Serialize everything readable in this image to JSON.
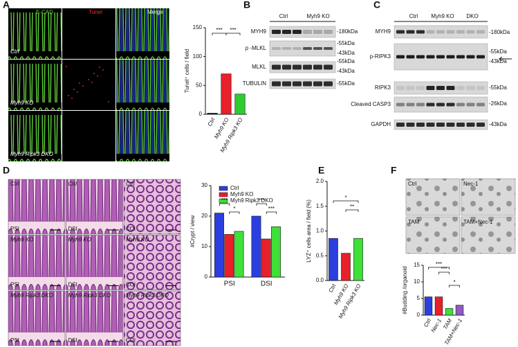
{
  "figure": {
    "panel_labels": [
      "A",
      "B",
      "C",
      "D",
      "E",
      "F"
    ],
    "a_micrographs": {
      "columns": [
        "E-CAD",
        "Tunel",
        "Merge"
      ],
      "rows": [
        "Ctrl",
        "Myh9 KO",
        "Myh9 Ripk3 DKO"
      ]
    },
    "b_blot": {
      "lanes": [
        "Ctrl",
        "Myh9 KO"
      ],
      "rows": [
        "MYH9",
        "p -MLKL",
        "MLKL",
        "TUBULIN"
      ],
      "markers": [
        "-180kDa",
        "-55kDa",
        "-43kDa",
        "-55kDa",
        "-43kDa",
        "-55kDa"
      ]
    },
    "c_blot": {
      "lanes": [
        "Ctrl",
        "Myh9 KO",
        "DKO"
      ],
      "rows": [
        "MYH9",
        "p-RIPK3",
        "RIPK3",
        "Cleaved CASP3",
        "GAPDH"
      ],
      "markers": [
        "-180kDa",
        "-55kDa",
        "-43kDa",
        "-55kDa",
        "-26kDa",
        "-43kDa"
      ]
    },
    "d_micrographs": {
      "columns": [
        "PSI",
        "DSI",
        "COl"
      ],
      "rows": [
        "Ctrl",
        "Myh9 KO",
        "Myh9 Ripk3 DKO"
      ]
    },
    "f_micrographs": [
      "Ctrl",
      "Nec-1",
      "TAM",
      "TAM+Nec-1"
    ]
  },
  "chart_data": [
    {
      "type": "bar",
      "y_label": "Tunel⁺ cells / field",
      "categories": [
        "Ctrl",
        "Myh9 KO",
        "Myh9 Ripk3 KO"
      ],
      "values": [
        2,
        70,
        35
      ],
      "colors": [
        "#333333",
        "#e8202a",
        "#2ecc2e"
      ],
      "ylim": [
        0,
        150
      ],
      "yticks": [
        0,
        50,
        100,
        150
      ],
      "annotations": [
        "***",
        "***"
      ]
    },
    {
      "type": "grouped-bar",
      "y_label": "#Crypt / view",
      "categories": [
        "PSI",
        "DSI"
      ],
      "series": [
        {
          "name": "Ctrl",
          "color": "#2b3fe0",
          "values": [
            21,
            20
          ]
        },
        {
          "name": "Myh9 KO",
          "color": "#e8202a",
          "values": [
            14,
            12.5
          ]
        },
        {
          "name": "Myh9 Ripk3 DKO",
          "color": "#3fe03a",
          "values": [
            15,
            16.5
          ]
        }
      ],
      "ylim": [
        0,
        30
      ],
      "yticks": [
        0,
        10,
        20,
        30
      ],
      "annotations": [
        "***",
        "*",
        "***",
        "***"
      ]
    },
    {
      "type": "bar",
      "y_label": "LYZ⁺ cells area / field (%)",
      "categories": [
        "Ctrl",
        "Myh9 KO",
        "Myh9 Ripk3 KO"
      ],
      "values": [
        0.85,
        0.55,
        0.85
      ],
      "colors": [
        "#2b3fe0",
        "#e8202a",
        "#3fe03a"
      ],
      "ylim": [
        0,
        2
      ],
      "yticks": [
        {
          "value": 0,
          "label": "0.0"
        },
        {
          "value": 0.5,
          "label": "0.5"
        },
        {
          "value": 1,
          "label": "1.0"
        },
        {
          "value": 1.5,
          "label": "1.5"
        },
        {
          "value": 2,
          "label": "2.0"
        }
      ],
      "annotations": [
        "*",
        "**"
      ]
    },
    {
      "type": "bar",
      "y_label": "#Budding /organoid",
      "categories": [
        "Ctrl",
        "Nec-1",
        "TAM",
        "TAM+Nec-1"
      ],
      "values": [
        5.5,
        5.5,
        2,
        3
      ],
      "colors": [
        "#2b3fe0",
        "#e8202a",
        "#3fe03a",
        "#8e5bc4"
      ],
      "ylim": [
        0,
        15
      ],
      "yticks": [
        0,
        5,
        10,
        15
      ],
      "annotations": [
        "***",
        "***",
        "*"
      ]
    }
  ]
}
